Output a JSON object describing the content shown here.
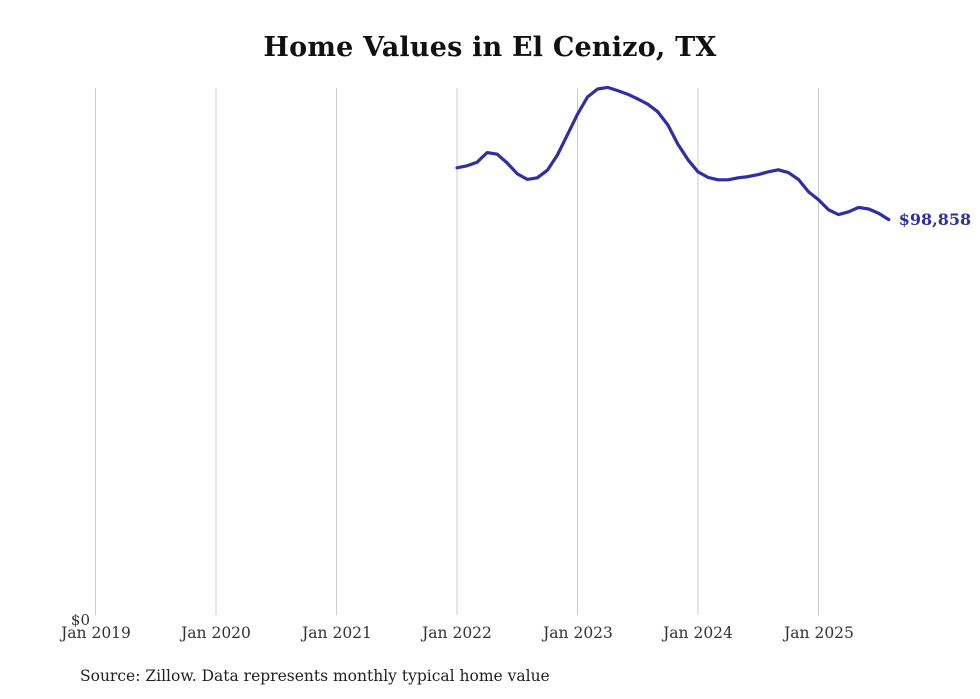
{
  "chart": {
    "title": "Home Values in El Cenizo, TX",
    "y_zero_label": "$0",
    "end_label": "$98,858",
    "source_note": "Source: Zillow. Data represents monthly typical home value",
    "line_color": "#2e2ea6",
    "label_color": "#2e2ea6",
    "grid_color": "#cccccc"
  },
  "chart_data": {
    "type": "line",
    "title": "Home Values in El Cenizo, TX",
    "xlabel": "",
    "ylabel": "",
    "x_tick_labels": [
      "Jan 2019",
      "Jan 2020",
      "Jan 2021",
      "Jan 2022",
      "Jan 2023",
      "Jan 2024",
      "Jan 2025"
    ],
    "ylim": [
      0,
      140000
    ],
    "grid": "vertical-only",
    "legend": "none",
    "final_value": 98858,
    "annotations": [
      {
        "text": "$98,858",
        "x": "2025-08",
        "y": 98858
      }
    ],
    "series": [
      {
        "name": "Monthly typical home value",
        "x": [
          "2022-01",
          "2022-02",
          "2022-03",
          "2022-04",
          "2022-05",
          "2022-06",
          "2022-07",
          "2022-08",
          "2022-09",
          "2022-10",
          "2022-11",
          "2022-12",
          "2023-01",
          "2023-02",
          "2023-03",
          "2023-04",
          "2023-05",
          "2023-06",
          "2023-07",
          "2023-08",
          "2023-09",
          "2023-10",
          "2023-11",
          "2023-12",
          "2024-01",
          "2024-02",
          "2024-03",
          "2024-04",
          "2024-05",
          "2024-06",
          "2024-07",
          "2024-08",
          "2024-09",
          "2024-10",
          "2024-11",
          "2024-12",
          "2025-01",
          "2025-02",
          "2025-03",
          "2025-04",
          "2025-05",
          "2025-06",
          "2025-07",
          "2025-08"
        ],
        "values": [
          111800,
          112300,
          113200,
          115600,
          115200,
          113000,
          110300,
          108900,
          109300,
          111200,
          115000,
          120100,
          125200,
          129500,
          131500,
          131900,
          131100,
          130200,
          129000,
          127700,
          125800,
          122500,
          117700,
          113800,
          110800,
          109400,
          108800,
          108800,
          109300,
          109600,
          110100,
          110800,
          111300,
          110600,
          108900,
          105800,
          103800,
          101300,
          100100,
          100800,
          101900,
          101500,
          100400,
          98858
        ]
      }
    ]
  }
}
